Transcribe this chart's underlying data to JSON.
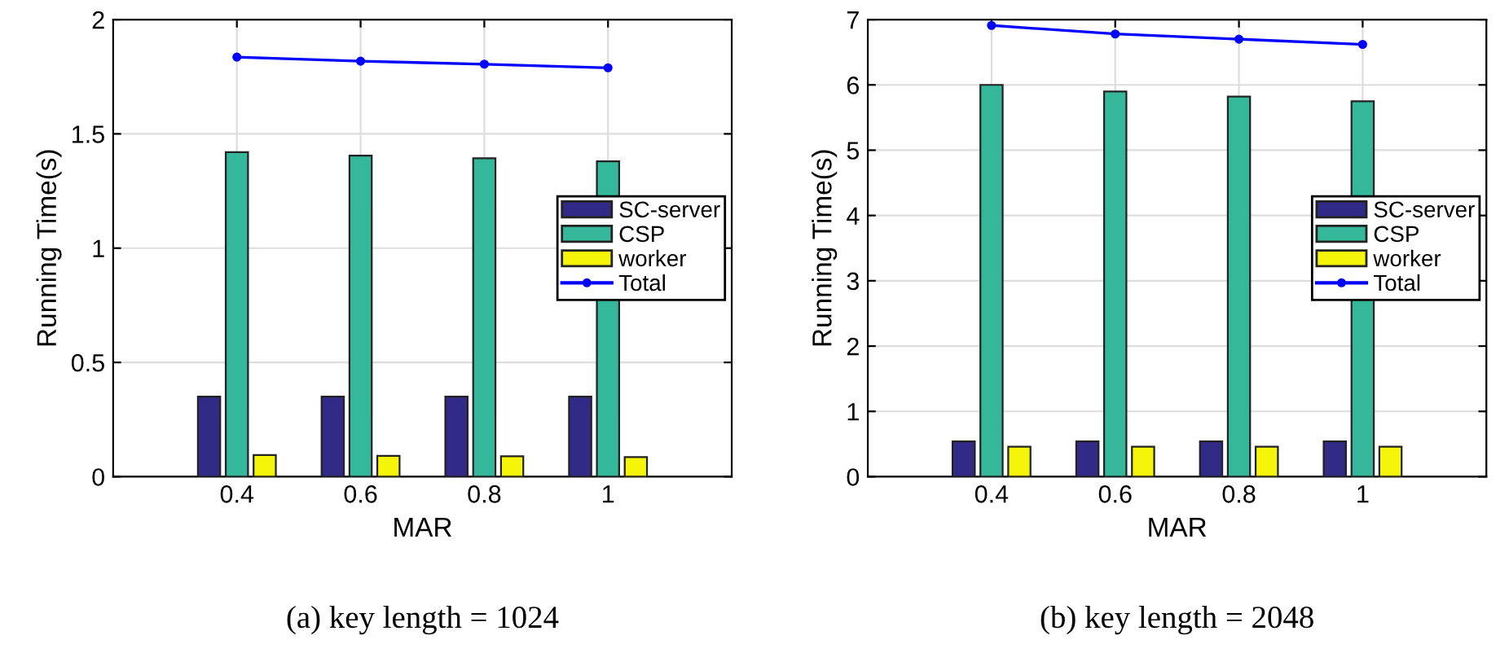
{
  "chart_data": [
    {
      "type": "bar",
      "title": "(a) key length = 1024",
      "xlabel": "MAR",
      "ylabel": "Running Time(s)",
      "categories": [
        "0.4",
        "0.6",
        "0.8",
        "1"
      ],
      "series": [
        {
          "name": "SC-server",
          "color": "#312a87",
          "values": [
            0.35,
            0.35,
            0.35,
            0.35
          ]
        },
        {
          "name": "CSP",
          "color": "#35b799",
          "values": [
            1.42,
            1.405,
            1.393,
            1.38
          ]
        },
        {
          "name": "worker",
          "color": "#f5f50a",
          "values": [
            0.095,
            0.091,
            0.089,
            0.086
          ]
        },
        {
          "name": "Total",
          "type": "line",
          "color": "#0000ff",
          "values": [
            1.836,
            1.818,
            1.805,
            1.789
          ]
        }
      ],
      "ylim": [
        0,
        2
      ],
      "yticks": [
        0,
        0.5,
        1,
        1.5,
        2
      ],
      "grid": true,
      "legend": "right",
      "marker": "circle"
    },
    {
      "type": "bar",
      "title": "(b) key length = 2048",
      "xlabel": "MAR",
      "ylabel": "Running Time(s)",
      "categories": [
        "0.4",
        "0.6",
        "0.8",
        "1"
      ],
      "series": [
        {
          "name": "SC-server",
          "color": "#312a87",
          "values": [
            0.54,
            0.54,
            0.54,
            0.54
          ]
        },
        {
          "name": "CSP",
          "color": "#35b799",
          "values": [
            6.0,
            5.9,
            5.82,
            5.75
          ]
        },
        {
          "name": "worker",
          "color": "#f5f50a",
          "values": [
            0.46,
            0.46,
            0.46,
            0.46
          ]
        },
        {
          "name": "Total",
          "type": "line",
          "color": "#0000ff",
          "values": [
            6.91,
            6.78,
            6.7,
            6.62
          ]
        }
      ],
      "ylim": [
        0,
        7
      ],
      "yticks": [
        0,
        1,
        2,
        3,
        4,
        5,
        6,
        7
      ],
      "grid": true,
      "legend": "right",
      "marker": "circle"
    }
  ]
}
